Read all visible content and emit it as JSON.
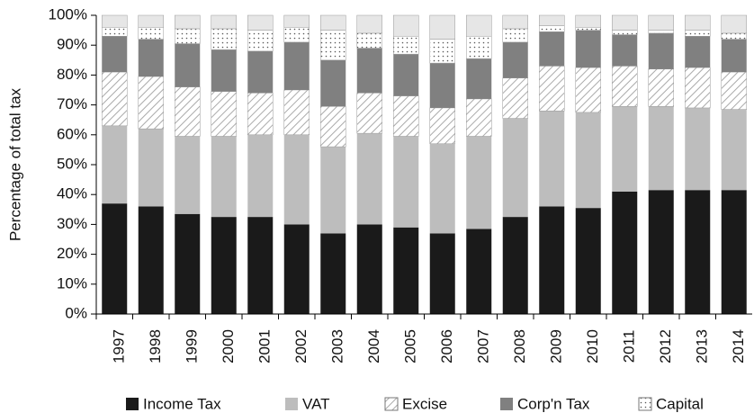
{
  "chart_data": {
    "type": "stacked_bar",
    "y_label": "Percentage of total tax",
    "categories": [
      "1997",
      "1998",
      "1999",
      "2000",
      "2001",
      "2002",
      "2003",
      "2004",
      "2005",
      "2006",
      "2007",
      "2008",
      "2009",
      "2010",
      "2011",
      "2012",
      "2013",
      "2014"
    ],
    "series": [
      {
        "name": "Income Tax",
        "color": "#1a1a1a",
        "values": [
          37,
          36,
          33.5,
          32.5,
          32.5,
          30,
          27,
          30,
          29,
          27,
          28.5,
          32.5,
          36,
          35.5,
          41,
          41.5,
          41.5,
          41.5
        ]
      },
      {
        "name": "VAT",
        "color": "#bdbdbd",
        "values": [
          26,
          26,
          26,
          27,
          27.5,
          30,
          29,
          30.5,
          30.5,
          30,
          31,
          33,
          32,
          32,
          28.5,
          28,
          27.5,
          27
        ]
      },
      {
        "name": "Excise",
        "color": "#ffffff",
        "pattern": "diagonal",
        "values": [
          18,
          17.5,
          16.5,
          15,
          14,
          15,
          13.5,
          13.5,
          13.5,
          12,
          12.5,
          13.5,
          15,
          15,
          13.5,
          12.5,
          13.5,
          12.5
        ]
      },
      {
        "name": "Corp'n Tax",
        "color": "#808080",
        "values": [
          12,
          12.5,
          14.5,
          14,
          14,
          16,
          15.5,
          15,
          14,
          15,
          13.5,
          12,
          11.5,
          12.5,
          10.5,
          12,
          10.5,
          11
        ]
      },
      {
        "name": "Capital",
        "color": "#ffffff",
        "pattern": "dots",
        "values": [
          3,
          4,
          5,
          7,
          7,
          5,
          10,
          5,
          6,
          8,
          7.5,
          4.5,
          2,
          1,
          1.5,
          1,
          2,
          2
        ]
      },
      {
        "color": "#e6e6e6",
        "values": [
          4,
          4,
          4.5,
          4.5,
          5,
          4,
          5,
          6,
          7,
          8,
          7,
          4.5,
          3.5,
          4,
          5,
          5,
          5,
          6
        ]
      }
    ],
    "ylim": [
      0,
      100
    ],
    "yticks": [
      {
        "value": 0,
        "label": "0%"
      },
      {
        "value": 10,
        "label": "10%"
      },
      {
        "value": 20,
        "label": "20%"
      },
      {
        "value": 30,
        "label": "30%"
      },
      {
        "value": 40,
        "label": "40%"
      },
      {
        "value": 50,
        "label": "50%"
      },
      {
        "value": 60,
        "label": "60%"
      },
      {
        "value": 70,
        "label": "70%"
      },
      {
        "value": 80,
        "label": "80%"
      },
      {
        "value": 90,
        "label": "90%"
      },
      {
        "value": 100,
        "label": "100%"
      }
    ],
    "grid": false,
    "legend": "bottom"
  }
}
